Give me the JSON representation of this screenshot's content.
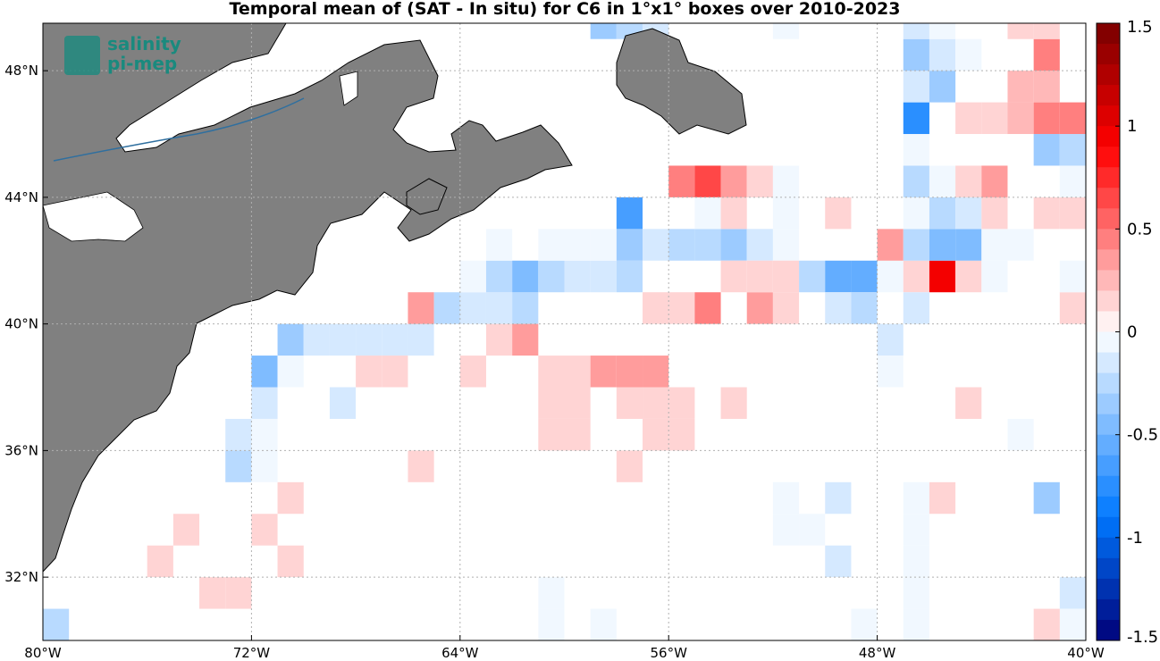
{
  "chart_data": {
    "type": "heatmap",
    "title": "Temporal mean of (SAT - In situ) for C6 in 1°x1° boxes over 2010-2023",
    "xlim": [
      -80,
      -40
    ],
    "ylim": [
      30,
      49.5
    ],
    "xticks": [
      -80,
      -72,
      -64,
      -56,
      -48,
      -40
    ],
    "xtick_labels": [
      "80°W",
      "72°W",
      "64°W",
      "56°W",
      "48°W",
      "40°W"
    ],
    "yticks": [
      32,
      36,
      40,
      44,
      48
    ],
    "ytick_labels": [
      "32°N",
      "36°N",
      "40°N",
      "44°N",
      "48°N"
    ],
    "grid": true,
    "colorbar": {
      "range": [
        -1.5,
        1.5
      ],
      "ticks": [
        1.5,
        1,
        0.5,
        0,
        -0.5,
        -1,
        -1.5
      ],
      "tick_labels": [
        "1.5",
        "1",
        "0.5",
        "0",
        "-0.5",
        "-1",
        "-1.5"
      ]
    },
    "cells": [
      [
        -79.5,
        30.5,
        -0.3
      ],
      [
        -79.5,
        29.5,
        -0.1
      ],
      [
        -77.5,
        29.5,
        -0.1
      ],
      [
        -76.5,
        29.5,
        0.15
      ],
      [
        -75.5,
        32.5,
        0.15
      ],
      [
        -74.5,
        33.5,
        0.15
      ],
      [
        -73.5,
        31.5,
        0.15
      ],
      [
        -72.5,
        31.5,
        0.15
      ],
      [
        -72.5,
        36.5,
        -0.2
      ],
      [
        -72.5,
        35.5,
        -0.3
      ],
      [
        -71.5,
        36.5,
        -0.1
      ],
      [
        -71.5,
        35.5,
        -0.1
      ],
      [
        -71.5,
        38.5,
        -0.5
      ],
      [
        -71.5,
        37.5,
        -0.2
      ],
      [
        -70.5,
        38.5,
        -0.1
      ],
      [
        -70.5,
        39.5,
        -0.4
      ],
      [
        -71.5,
        33.5,
        0.15
      ],
      [
        -70.5,
        34.5,
        0.15
      ],
      [
        -70.5,
        32.5,
        0.15
      ],
      [
        -69.5,
        39.5,
        -0.15
      ],
      [
        -68.5,
        39.5,
        -0.15
      ],
      [
        -67.5,
        39.5,
        -0.15
      ],
      [
        -66.5,
        39.5,
        -0.15
      ],
      [
        -65.5,
        39.5,
        -0.15
      ],
      [
        -68.5,
        37.5,
        -0.2
      ],
      [
        -67.5,
        38.5,
        0.15
      ],
      [
        -66.5,
        38.5,
        0.15
      ],
      [
        -65.5,
        35.5,
        0.15
      ],
      [
        -65.5,
        40.5,
        0.3
      ],
      [
        -64.5,
        40.5,
        -0.3
      ],
      [
        -63.5,
        40.5,
        -0.2
      ],
      [
        -62.5,
        40.5,
        -0.2
      ],
      [
        -61.5,
        40.5,
        -0.3
      ],
      [
        -63.5,
        41.5,
        -0.1
      ],
      [
        -62.5,
        41.5,
        -0.3
      ],
      [
        -61.5,
        41.5,
        -0.5
      ],
      [
        -60.5,
        41.5,
        -0.3
      ],
      [
        -59.5,
        41.5,
        -0.2
      ],
      [
        -58.5,
        41.5,
        -0.2
      ],
      [
        -57.5,
        41.5,
        -0.3
      ],
      [
        -62.5,
        42.5,
        -0.1
      ],
      [
        -60.5,
        42.5,
        -0.1
      ],
      [
        -59.5,
        42.5,
        -0.1
      ],
      [
        -58.5,
        42.5,
        -0.1
      ],
      [
        -57.5,
        42.5,
        -0.4
      ],
      [
        -56.5,
        42.5,
        -0.2
      ],
      [
        -55.5,
        42.5,
        -0.3
      ],
      [
        -54.5,
        42.5,
        -0.3
      ],
      [
        -53.5,
        42.5,
        -0.4
      ],
      [
        -52.5,
        42.5,
        -0.2
      ],
      [
        -51.5,
        42.5,
        -0.1
      ],
      [
        -57.5,
        43.5,
        -0.7
      ],
      [
        -62.5,
        39.5,
        0.15
      ],
      [
        -61.5,
        39.5,
        0.3
      ],
      [
        -63.5,
        38.5,
        0.15
      ],
      [
        -60.5,
        38.5,
        0.15
      ],
      [
        -59.5,
        38.5,
        0.15
      ],
      [
        -58.5,
        38.5,
        0.3
      ],
      [
        -57.5,
        38.5,
        0.3
      ],
      [
        -56.5,
        38.5,
        0.3
      ],
      [
        -60.5,
        37.5,
        0.15
      ],
      [
        -59.5,
        37.5,
        0.15
      ],
      [
        -57.5,
        37.5,
        0.15
      ],
      [
        -56.5,
        37.5,
        0.15
      ],
      [
        -55.5,
        37.5,
        0.15
      ],
      [
        -60.5,
        36.5,
        0.15
      ],
      [
        -59.5,
        36.5,
        0.15
      ],
      [
        -56.5,
        36.5,
        0.15
      ],
      [
        -55.5,
        36.5,
        0.15
      ],
      [
        -57.5,
        35.5,
        0.15
      ],
      [
        -53.5,
        37.5,
        0.15
      ],
      [
        -60.5,
        31.5,
        -0.1
      ],
      [
        -60.5,
        30.5,
        -0.1
      ],
      [
        -60.5,
        29.5,
        0.15
      ],
      [
        -58.5,
        30.5,
        -0.1
      ],
      [
        -58.5,
        49.5,
        -0.4
      ],
      [
        -57.5,
        49.5,
        -0.3
      ],
      [
        -56.5,
        49.5,
        -0.2
      ],
      [
        -56.5,
        48.5,
        -0.3
      ],
      [
        -55.5,
        44.5,
        0.4
      ],
      [
        -54.5,
        44.5,
        0.6
      ],
      [
        -53.5,
        44.5,
        0.3
      ],
      [
        -52.5,
        44.5,
        0.15
      ],
      [
        -51.5,
        44.5,
        -0.1
      ],
      [
        -54.5,
        43.5,
        -0.1
      ],
      [
        -53.5,
        43.5,
        0.15
      ],
      [
        -51.5,
        43.5,
        -0.1
      ],
      [
        -49.5,
        43.5,
        0.15
      ],
      [
        -56.5,
        40.5,
        0.15
      ],
      [
        -55.5,
        40.5,
        0.15
      ],
      [
        -54.5,
        40.5,
        0.4
      ],
      [
        -52.5,
        40.5,
        0.3
      ],
      [
        -51.5,
        40.5,
        0.15
      ],
      [
        -53.5,
        41.5,
        0.15
      ],
      [
        -52.5,
        41.5,
        0.15
      ],
      [
        -51.5,
        41.5,
        0.15
      ],
      [
        -50.5,
        41.5,
        -0.3
      ],
      [
        -49.5,
        41.5,
        -0.6
      ],
      [
        -48.5,
        41.5,
        -0.6
      ],
      [
        -47.5,
        41.5,
        -0.1
      ],
      [
        -46.5,
        41.5,
        0.15
      ],
      [
        -45.5,
        41.5,
        0.9
      ],
      [
        -44.5,
        41.5,
        0.15
      ],
      [
        -43.5,
        41.5,
        -0.1
      ],
      [
        -49.5,
        40.5,
        -0.2
      ],
      [
        -48.5,
        40.5,
        -0.3
      ],
      [
        -46.5,
        40.5,
        -0.2
      ],
      [
        -47.5,
        39.5,
        -0.2
      ],
      [
        -47.5,
        38.5,
        -0.1
      ],
      [
        -51.5,
        34.5,
        -0.1
      ],
      [
        -51.5,
        33.5,
        -0.1
      ],
      [
        -49.5,
        34.5,
        -0.2
      ],
      [
        -50.5,
        33.5,
        -0.1
      ],
      [
        -49.5,
        32.5,
        -0.2
      ],
      [
        -46.5,
        33.5,
        -0.1
      ],
      [
        -46.5,
        32.5,
        -0.1
      ],
      [
        -46.5,
        31.5,
        -0.1
      ],
      [
        -46.5,
        30.5,
        -0.1
      ],
      [
        -48.5,
        30.5,
        -0.1
      ],
      [
        -46.5,
        34.5,
        -0.1
      ],
      [
        -45.5,
        34.5,
        0.15
      ],
      [
        -44.5,
        37.5,
        0.15
      ],
      [
        -42.5,
        36.5,
        -0.1
      ],
      [
        -41.5,
        34.5,
        -0.4
      ],
      [
        -47.5,
        42.5,
        0.3
      ],
      [
        -46.5,
        42.5,
        -0.3
      ],
      [
        -45.5,
        42.5,
        -0.5
      ],
      [
        -44.5,
        42.5,
        -0.5
      ],
      [
        -43.5,
        42.5,
        -0.1
      ],
      [
        -42.5,
        42.5,
        -0.1
      ],
      [
        -46.5,
        43.5,
        -0.1
      ],
      [
        -45.5,
        43.5,
        -0.3
      ],
      [
        -44.5,
        43.5,
        -0.2
      ],
      [
        -43.5,
        43.5,
        0.15
      ],
      [
        -41.5,
        43.5,
        0.15
      ],
      [
        -40.5,
        43.5,
        0.15
      ],
      [
        -46.5,
        44.5,
        -0.3
      ],
      [
        -45.5,
        44.5,
        -0.1
      ],
      [
        -44.5,
        44.5,
        0.15
      ],
      [
        -43.5,
        44.5,
        0.3
      ],
      [
        -40.5,
        44.5,
        -0.1
      ],
      [
        -46.5,
        45.5,
        -0.1
      ],
      [
        -41.5,
        45.5,
        -0.4
      ],
      [
        -40.5,
        45.5,
        -0.3
      ],
      [
        -39.5,
        45.5,
        -0.1
      ],
      [
        -46.5,
        46.5,
        -0.8
      ],
      [
        -44.5,
        46.5,
        0.15
      ],
      [
        -43.5,
        46.5,
        0.15
      ],
      [
        -42.5,
        46.5,
        0.2
      ],
      [
        -41.5,
        46.5,
        0.4
      ],
      [
        -40.5,
        46.5,
        0.4
      ],
      [
        -39.5,
        46.5,
        -0.1
      ],
      [
        -46.5,
        47.5,
        -0.2
      ],
      [
        -45.5,
        47.5,
        -0.4
      ],
      [
        -42.5,
        47.5,
        0.2
      ],
      [
        -41.5,
        47.5,
        0.2
      ],
      [
        -46.5,
        48.5,
        -0.4
      ],
      [
        -45.5,
        48.5,
        -0.2
      ],
      [
        -44.5,
        48.5,
        -0.1
      ],
      [
        -41.5,
        48.5,
        0.4
      ],
      [
        -39.5,
        48.5,
        -0.1
      ],
      [
        -51.5,
        49.5,
        -0.1
      ],
      [
        -46.5,
        49.5,
        -0.2
      ],
      [
        -45.5,
        49.5,
        -0.1
      ],
      [
        -42.5,
        49.5,
        0.15
      ],
      [
        -41.5,
        49.5,
        0.15
      ],
      [
        -39.5,
        49.5,
        0.15
      ],
      [
        -38.5,
        49.5,
        -0.1
      ],
      [
        -40.5,
        31.5,
        -0.2
      ],
      [
        -40.5,
        30.5,
        -0.1
      ],
      [
        -41.5,
        30.5,
        0.15
      ],
      [
        -40.5,
        40.5,
        0.15
      ],
      [
        -40.5,
        41.5,
        -0.1
      ]
    ]
  },
  "logo": {
    "line1": "salinity",
    "line2": "pi-mep"
  }
}
